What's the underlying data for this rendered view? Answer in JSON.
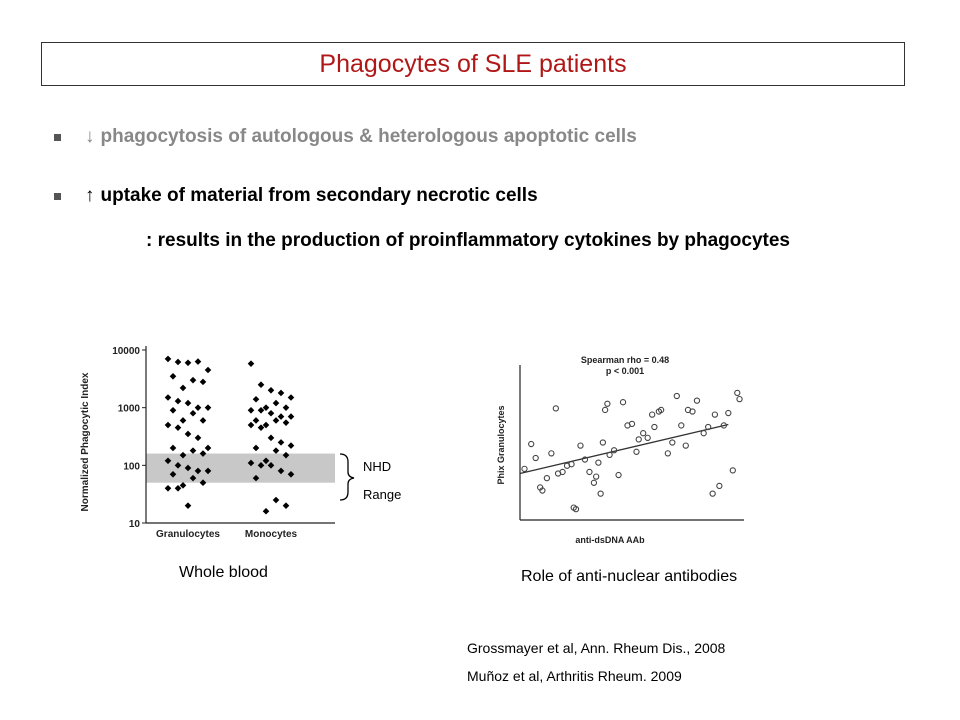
{
  "slide": {
    "title": "Phagocytes of SLE patients",
    "bullets": [
      {
        "arrow": "↓",
        "text": "phagocytosis of autologous & heterologous apoptotic cells",
        "color": "#888888"
      },
      {
        "arrow": "↑",
        "text": "uptake of material from secondary necrotic cells",
        "color": "#000000"
      }
    ],
    "sub_text": ": results in the production of proinflammatory cytokines by phagocytes",
    "caption_left": "Whole blood",
    "caption_right": "Role of anti-nuclear antibodies",
    "references": [
      "Grossmayer et al, Ann. Rheum Dis., 2008",
      "Muñoz et al, Arthritis Rheum. 2009"
    ],
    "nhd_label": "NHD",
    "range_label": "Range"
  },
  "chart_data": [
    {
      "type": "scatter",
      "ylabel": "Normalized Phagocytic Index",
      "yscale": "log",
      "ylim": [
        10,
        10000
      ],
      "yticks": [
        "10",
        "100",
        "1000",
        "10000"
      ],
      "categories": [
        "Granulocytes",
        "Monocytes"
      ],
      "normal_range": [
        50,
        160
      ],
      "series": [
        {
          "values": [
            7000,
            6200,
            6000,
            6300,
            4500,
            3500,
            3000,
            2800,
            2200,
            1500,
            1300,
            1200,
            1000,
            1000,
            900,
            800,
            600,
            600,
            500,
            450,
            350,
            300,
            200,
            200,
            180,
            160,
            150,
            120,
            100,
            90,
            80,
            80,
            70,
            60,
            50,
            45,
            40,
            40,
            20
          ]
        },
        {
          "values": [
            5800,
            2500,
            2000,
            1800,
            1500,
            1400,
            1200,
            1000,
            1000,
            900,
            900,
            800,
            700,
            700,
            600,
            600,
            550,
            500,
            500,
            450,
            300,
            250,
            220,
            200,
            180,
            150,
            120,
            110,
            100,
            100,
            80,
            70,
            60,
            25,
            20,
            16
          ]
        }
      ]
    },
    {
      "type": "scatter",
      "xlabel": "anti-dsDNA AAb",
      "ylabel": "Phix Granulocytes",
      "annotation": [
        "Spearman rho = 0.48",
        "p < 0.001"
      ],
      "xlim": [
        0,
        100
      ],
      "ylim": [
        0,
        100
      ],
      "trendline": [
        [
          0,
          30
        ],
        [
          100,
          64
        ]
      ],
      "points": [
        [
          2,
          33
        ],
        [
          5,
          49
        ],
        [
          7,
          40
        ],
        [
          9,
          21
        ],
        [
          10,
          19
        ],
        [
          12,
          27
        ],
        [
          14,
          43
        ],
        [
          16,
          72
        ],
        [
          17,
          30
        ],
        [
          19,
          31
        ],
        [
          21,
          35
        ],
        [
          23,
          36
        ],
        [
          24,
          8
        ],
        [
          25,
          7
        ],
        [
          27,
          48
        ],
        [
          29,
          39
        ],
        [
          31,
          31
        ],
        [
          33,
          24
        ],
        [
          34,
          28
        ],
        [
          35,
          37
        ],
        [
          36,
          17
        ],
        [
          37,
          50
        ],
        [
          38,
          71
        ],
        [
          39,
          75
        ],
        [
          40,
          42
        ],
        [
          42,
          45
        ],
        [
          44,
          29
        ],
        [
          46,
          76
        ],
        [
          48,
          61
        ],
        [
          50,
          62
        ],
        [
          52,
          44
        ],
        [
          53,
          52
        ],
        [
          55,
          56
        ],
        [
          57,
          53
        ],
        [
          59,
          68
        ],
        [
          60,
          60
        ],
        [
          62,
          70
        ],
        [
          63,
          71
        ],
        [
          66,
          43
        ],
        [
          68,
          50
        ],
        [
          70,
          80
        ],
        [
          72,
          61
        ],
        [
          74,
          48
        ],
        [
          75,
          71
        ],
        [
          77,
          70
        ],
        [
          79,
          77
        ],
        [
          82,
          56
        ],
        [
          84,
          60
        ],
        [
          86,
          17
        ],
        [
          87,
          68
        ],
        [
          89,
          22
        ],
        [
          91,
          61
        ],
        [
          93,
          69
        ],
        [
          95,
          32
        ],
        [
          97,
          82
        ],
        [
          98,
          78
        ]
      ]
    }
  ]
}
